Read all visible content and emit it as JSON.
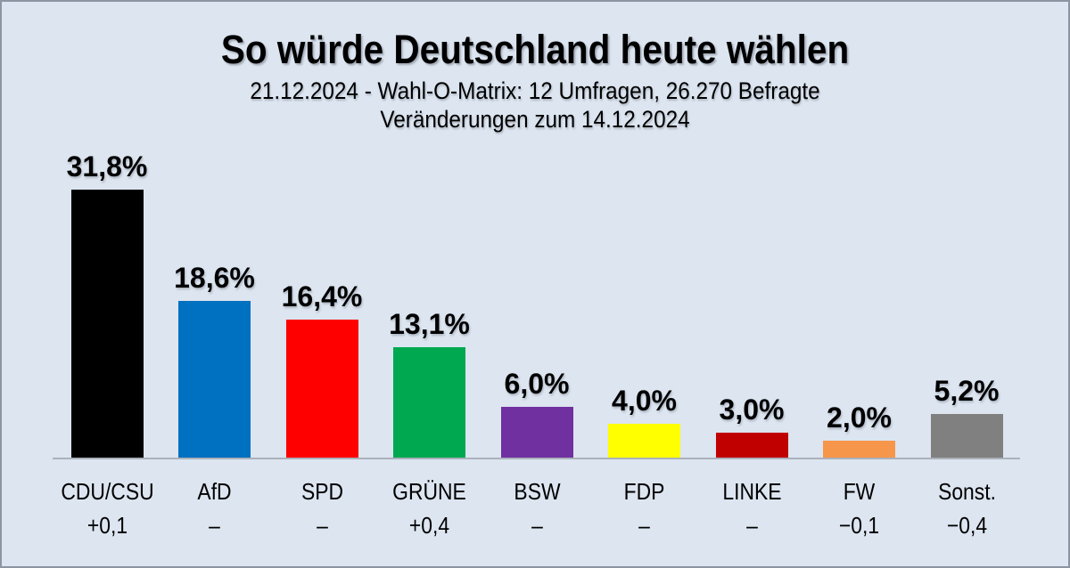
{
  "chart_data": {
    "type": "bar",
    "title": "So würde Deutschland heute wählen",
    "subtitle_line1": "21.12.2024 - Wahl-O-Matrix: 12 Umfragen, 26.270 Befragte",
    "subtitle_line2": "Veränderungen zum 14.12.2024",
    "categories": [
      "CDU/CSU",
      "AfD",
      "SPD",
      "GRÜNE",
      "BSW",
      "FDP",
      "LINKE",
      "FW",
      "Sonst."
    ],
    "values": [
      31.8,
      18.6,
      16.4,
      13.1,
      6.0,
      4.0,
      3.0,
      2.0,
      5.2
    ],
    "value_labels": [
      "31,8%",
      "18,6%",
      "16,4%",
      "13,1%",
      "6,0%",
      "4,0%",
      "3,0%",
      "2,0%",
      "5,2%"
    ],
    "changes": [
      "+0,1",
      "–",
      "–",
      "+0,4",
      "–",
      "–",
      "–",
      "−0,1",
      "−0,4"
    ],
    "bar_colors": [
      "#000000",
      "#0070c0",
      "#ff0000",
      "#00a84f",
      "#7030a0",
      "#ffff00",
      "#c00000",
      "#f5964a",
      "#808080"
    ],
    "xlabel": "",
    "ylabel": "",
    "ylim": [
      0,
      35
    ],
    "grid": false,
    "legend": null
  },
  "colors": {
    "background": "#dce5f0",
    "frame_border": "#8d95a3",
    "axis_line": "#abb1bb",
    "text": "#000000"
  }
}
